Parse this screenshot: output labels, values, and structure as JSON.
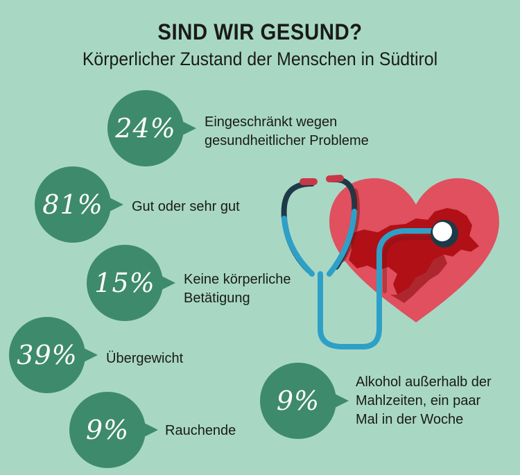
{
  "title": "SIND WIR GESUND?",
  "subtitle": "Körperlicher Zustand der Menschen in Südtirol",
  "colors": {
    "background": "#a8d8c4",
    "bubble": "#3e8a6c",
    "heart": "#e0505e",
    "region": "#b01016",
    "tube": "#2ea0c8"
  },
  "stats": [
    {
      "percent": "24%",
      "label_lines": [
        "Eingeschränkt wegen",
        "gesundheitlicher Probleme"
      ]
    },
    {
      "percent": "81%",
      "label_lines": [
        "Gut oder sehr gut"
      ]
    },
    {
      "percent": "15%",
      "label_lines": [
        "Keine körperliche",
        "Betätigung"
      ]
    },
    {
      "percent": "39%",
      "label_lines": [
        "Übergewicht"
      ]
    },
    {
      "percent": "9%",
      "label_lines": [
        "Rauchende"
      ]
    },
    {
      "percent": "9%",
      "label_lines": [
        "Alkohol außerhalb der",
        "Mahlzeiten, ein paar",
        "Mal in der Woche"
      ]
    }
  ],
  "illustration": {
    "icons": [
      "heart-icon",
      "stethoscope-icon",
      "south-tyrol-map-icon"
    ]
  }
}
